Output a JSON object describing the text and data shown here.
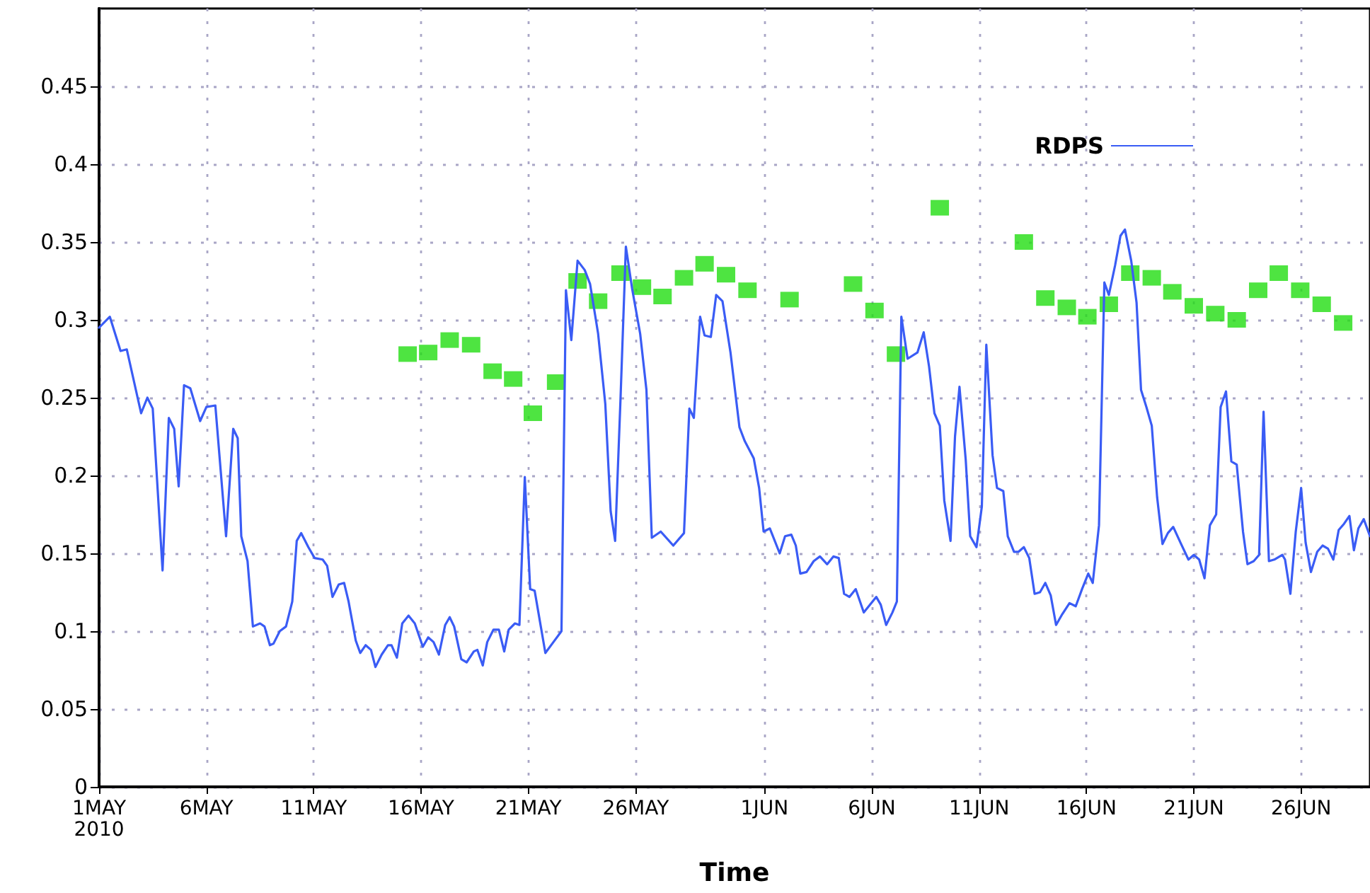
{
  "chart_data": {
    "type": "line",
    "xlabel": "Time",
    "xlim": [
      "2010-05-01T00:00",
      "2010-06-29T05:00"
    ],
    "xticks": [
      {
        "value": "2010-05-01",
        "label": "1MAY\n2010"
      },
      {
        "value": "2010-05-06",
        "label": "6MAY"
      },
      {
        "value": "2010-05-11",
        "label": "11MAY"
      },
      {
        "value": "2010-05-16",
        "label": "16MAY"
      },
      {
        "value": "2010-05-21",
        "label": "21MAY"
      },
      {
        "value": "2010-05-26",
        "label": "26MAY"
      },
      {
        "value": "2010-06-01",
        "label": "1JUN"
      },
      {
        "value": "2010-06-06",
        "label": "6JUN"
      },
      {
        "value": "2010-06-11",
        "label": "11JUN"
      },
      {
        "value": "2010-06-16",
        "label": "16JUN"
      },
      {
        "value": "2010-06-21",
        "label": "21JUN"
      },
      {
        "value": "2010-06-26",
        "label": "26JUN"
      }
    ],
    "ylim": [
      0,
      0.5
    ],
    "yticks": [
      0,
      0.05,
      0.1,
      0.15,
      0.2,
      0.25,
      0.3,
      0.35,
      0.4,
      0.45
    ],
    "grid": true,
    "legend": "top right",
    "line_style": "solid",
    "series": [
      {
        "name": "RDPS",
        "color": "#3a5cf5",
        "marker": "none",
        "x": [
          "2010-05-01T00:00",
          "2010-05-01T12:00",
          "2010-05-02T00:00",
          "2010-05-02T07:00",
          "2010-05-02T23:00",
          "2010-05-03T06:00",
          "2010-05-03T12:00",
          "2010-05-03T23:00",
          "2010-05-04T06:00",
          "2010-05-04T12:00",
          "2010-05-04T17:00",
          "2010-05-04T23:00",
          "2010-05-05T06:00",
          "2010-05-05T17:00",
          "2010-05-06T00:00",
          "2010-05-06T10:00",
          "2010-05-06T22:00",
          "2010-05-07T06:00",
          "2010-05-07T11:00",
          "2010-05-07T15:00",
          "2010-05-07T22:00",
          "2010-05-08T04:00",
          "2010-05-08T12:00",
          "2010-05-08T17:00",
          "2010-05-08T23:00",
          "2010-05-09T03:00",
          "2010-05-09T10:00",
          "2010-05-09T17:00",
          "2010-05-10T00:00",
          "2010-05-10T05:00",
          "2010-05-10T10:00",
          "2010-05-10T18:00",
          "2010-05-11T01:00",
          "2010-05-11T10:00",
          "2010-05-11T15:00",
          "2010-05-11T21:00",
          "2010-05-12T04:00",
          "2010-05-12T10:00",
          "2010-05-12T15:00",
          "2010-05-12T23:00",
          "2010-05-13T04:00",
          "2010-05-13T10:00",
          "2010-05-13T16:00",
          "2010-05-13T21:00",
          "2010-05-14T04:00",
          "2010-05-14T11:00",
          "2010-05-14T15:00",
          "2010-05-14T21:00",
          "2010-05-15T03:00",
          "2010-05-15T10:00",
          "2010-05-15T17:00",
          "2010-05-16T02:00",
          "2010-05-16T08:00",
          "2010-05-16T14:00",
          "2010-05-16T20:00",
          "2010-05-17T03:00",
          "2010-05-17T08:00",
          "2010-05-17T13:00",
          "2010-05-17T21:00",
          "2010-05-18T03:00",
          "2010-05-18T11:00",
          "2010-05-18T15:00",
          "2010-05-18T21:00",
          "2010-05-19T02:00",
          "2010-05-19T09:00",
          "2010-05-19T15:00",
          "2010-05-19T21:00",
          "2010-05-20T02:00",
          "2010-05-20T09:00",
          "2010-05-20T14:00",
          "2010-05-20T20:00",
          "2010-05-21T02:00",
          "2010-05-21T07:00",
          "2010-05-21T19:00",
          "2010-05-22T04:00",
          "2010-05-22T13:00",
          "2010-05-22T18:00",
          "2010-05-23T00:00",
          "2010-05-23T07:00",
          "2010-05-23T15:00",
          "2010-05-23T21:00",
          "2010-05-24T06:00",
          "2010-05-24T14:00",
          "2010-05-24T20:00",
          "2010-05-25T01:00",
          "2010-05-25T07:00",
          "2010-05-25T13:00",
          "2010-05-25T20:00",
          "2010-05-26T05:00",
          "2010-05-26T12:00",
          "2010-05-26T18:00",
          "2010-05-27T04:00",
          "2010-05-27T18:00",
          "2010-05-28T06:00",
          "2010-05-28T12:00",
          "2010-05-28T17:00",
          "2010-05-29T00:00",
          "2010-05-29T05:00",
          "2010-05-29T12:00",
          "2010-05-29T18:00",
          "2010-05-30T01:00",
          "2010-05-30T10:00",
          "2010-05-30T20:00",
          "2010-05-31T02:00",
          "2010-05-31T12:00",
          "2010-05-31T18:00",
          "2010-05-31T23:00",
          "2010-06-01T06:00",
          "2010-06-01T17:00",
          "2010-06-01T23:00",
          "2010-06-02T06:00",
          "2010-06-02T11:00",
          "2010-06-02T16:00",
          "2010-06-02T23:00",
          "2010-06-03T07:00",
          "2010-06-03T14:00",
          "2010-06-03T22:00",
          "2010-06-04T05:00",
          "2010-06-04T11:00",
          "2010-06-04T17:00",
          "2010-06-04T23:00",
          "2010-06-05T06:00",
          "2010-06-05T15:00",
          "2010-06-05T22:00",
          "2010-06-06T05:00",
          "2010-06-06T10:00",
          "2010-06-06T16:00",
          "2010-06-06T23:00",
          "2010-06-07T04:00",
          "2010-06-07T09:00",
          "2010-06-07T16:00",
          "2010-06-08T03:00",
          "2010-06-08T10:00",
          "2010-06-08T16:00",
          "2010-06-08T22:00",
          "2010-06-09T04:00",
          "2010-06-09T09:00",
          "2010-06-09T16:00",
          "2010-06-09T21:00",
          "2010-06-10T02:00",
          "2010-06-10T09:00",
          "2010-06-10T14:00",
          "2010-06-10T21:00",
          "2010-06-11T03:00",
          "2010-06-11T08:00",
          "2010-06-11T15:00",
          "2010-06-11T20:00",
          "2010-06-12T03:00",
          "2010-06-12T08:00",
          "2010-06-12T15:00",
          "2010-06-12T20:00",
          "2010-06-13T02:00",
          "2010-06-13T08:00",
          "2010-06-13T14:00",
          "2010-06-13T20:00",
          "2010-06-14T02:00",
          "2010-06-14T08:00",
          "2010-06-14T14:00",
          "2010-06-14T21:00",
          "2010-06-15T05:00",
          "2010-06-15T12:00",
          "2010-06-15T19:00",
          "2010-06-16T02:00",
          "2010-06-16T07:00",
          "2010-06-16T14:00",
          "2010-06-16T20:00",
          "2010-06-17T01:00",
          "2010-06-17T08:00",
          "2010-06-17T14:00",
          "2010-06-17T19:00",
          "2010-06-18T02:00",
          "2010-06-18T08:00",
          "2010-06-18T13:00",
          "2010-06-18T19:00",
          "2010-06-19T01:00",
          "2010-06-19T07:00",
          "2010-06-19T13:00",
          "2010-06-19T19:00",
          "2010-06-20T01:00",
          "2010-06-20T09:00",
          "2010-06-20T18:00",
          "2010-06-21T00:00",
          "2010-06-21T06:00",
          "2010-06-21T12:00",
          "2010-06-21T18:00",
          "2010-06-22T01:00",
          "2010-06-22T06:00",
          "2010-06-22T12:00",
          "2010-06-22T18:00",
          "2010-06-23T00:00",
          "2010-06-23T07:00",
          "2010-06-23T12:00",
          "2010-06-23T19:00",
          "2010-06-24T01:00",
          "2010-06-24T06:00",
          "2010-06-24T12:00",
          "2010-06-24T18:00",
          "2010-06-25T03:00",
          "2010-06-25T06:00",
          "2010-06-25T12:00",
          "2010-06-25T18:00",
          "2010-06-26T00:00",
          "2010-06-26T05:00",
          "2010-06-26T11:00",
          "2010-06-26T18:00",
          "2010-06-27T00:00",
          "2010-06-27T06:00",
          "2010-06-27T12:00",
          "2010-06-27T18:00",
          "2010-06-28T00:00",
          "2010-06-28T06:00",
          "2010-06-28T11:00",
          "2010-06-28T16:00",
          "2010-06-28T22:00",
          "2010-06-29T05:00"
        ],
        "values": [
          0.295,
          0.302,
          0.28,
          0.281,
          0.24,
          0.25,
          0.243,
          0.139,
          0.237,
          0.23,
          0.193,
          0.258,
          0.256,
          0.235,
          0.244,
          0.245,
          0.161,
          0.23,
          0.224,
          0.161,
          0.145,
          0.103,
          0.105,
          0.103,
          0.091,
          0.092,
          0.1,
          0.103,
          0.119,
          0.158,
          0.163,
          0.154,
          0.147,
          0.146,
          0.142,
          0.122,
          0.13,
          0.131,
          0.119,
          0.094,
          0.086,
          0.091,
          0.088,
          0.077,
          0.085,
          0.091,
          0.091,
          0.083,
          0.105,
          0.11,
          0.105,
          0.09,
          0.096,
          0.093,
          0.085,
          0.104,
          0.109,
          0.103,
          0.082,
          0.08,
          0.087,
          0.088,
          0.078,
          0.093,
          0.101,
          0.101,
          0.087,
          0.101,
          0.105,
          0.104,
          0.199,
          0.127,
          0.126,
          0.086,
          0.093,
          0.1,
          0.319,
          0.287,
          0.338,
          0.332,
          0.323,
          0.291,
          0.246,
          0.177,
          0.158,
          0.249,
          0.347,
          0.32,
          0.291,
          0.255,
          0.16,
          0.164,
          0.155,
          0.163,
          0.243,
          0.237,
          0.302,
          0.29,
          0.289,
          0.316,
          0.312,
          0.279,
          0.231,
          0.222,
          0.211,
          0.192,
          0.164,
          0.166,
          0.15,
          0.161,
          0.162,
          0.155,
          0.137,
          0.138,
          0.145,
          0.148,
          0.143,
          0.148,
          0.147,
          0.124,
          0.122,
          0.127,
          0.112,
          0.117,
          0.122,
          0.117,
          0.104,
          0.112,
          0.119,
          0.302,
          0.275,
          0.279,
          0.292,
          0.27,
          0.24,
          0.232,
          0.184,
          0.158,
          0.225,
          0.257,
          0.21,
          0.161,
          0.154,
          0.18,
          0.284,
          0.213,
          0.192,
          0.19,
          0.161,
          0.151,
          0.151,
          0.154,
          0.147,
          0.124,
          0.125,
          0.131,
          0.123,
          0.104,
          0.111,
          0.118,
          0.116,
          0.127,
          0.137,
          0.131,
          0.168,
          0.324,
          0.316,
          0.335,
          0.354,
          0.358,
          0.338,
          0.311,
          0.255,
          0.244,
          0.232,
          0.186,
          0.156,
          0.163,
          0.167,
          0.157,
          0.146,
          0.149,
          0.146,
          0.134,
          0.168,
          0.175,
          0.244,
          0.254,
          0.209,
          0.207,
          0.164,
          0.143,
          0.145,
          0.149,
          0.241,
          0.145,
          0.146,
          0.149,
          0.146,
          0.124,
          0.164,
          0.192,
          0.157,
          0.138,
          0.151,
          0.155,
          0.153,
          0.146,
          0.165,
          0.169,
          0.174,
          0.152,
          0.166,
          0.172,
          0.161
        ]
      },
      {
        "type": "scatter",
        "color": "#22dd11",
        "marker": "square",
        "x": [
          "2010-05-15T09:00",
          "2010-05-16T08:00",
          "2010-05-17T08:00",
          "2010-05-18T08:00",
          "2010-05-19T08:00",
          "2010-05-20T07:00",
          "2010-05-21T05:00",
          "2010-05-22T07:00",
          "2010-05-23T07:00",
          "2010-05-24T06:00",
          "2010-05-25T07:00",
          "2010-05-26T07:00",
          "2010-05-27T06:00",
          "2010-05-28T06:00",
          "2010-05-29T05:00",
          "2010-05-30T05:00",
          "2010-05-31T05:00",
          "2010-06-02T04:00",
          "2010-06-05T03:00",
          "2010-06-06T03:00",
          "2010-06-07T03:00",
          "2010-06-09T04:00",
          "2010-06-13T02:00",
          "2010-06-14T02:00",
          "2010-06-15T02:00",
          "2010-06-16T01:00",
          "2010-06-17T01:00",
          "2010-06-18T01:00",
          "2010-06-19T01:00",
          "2010-06-20T00:00",
          "2010-06-21T00:00",
          "2010-06-22T00:00",
          "2010-06-23T00:00",
          "2010-06-24T00:00",
          "2010-06-24T23:00",
          "2010-06-25T23:00",
          "2010-06-26T23:00",
          "2010-06-27T23:00"
        ],
        "values": [
          0.278,
          0.279,
          0.287,
          0.284,
          0.267,
          0.262,
          0.24,
          0.26,
          0.325,
          0.312,
          0.33,
          0.321,
          0.315,
          0.327,
          0.336,
          0.329,
          0.319,
          0.313,
          0.323,
          0.306,
          0.278,
          0.372,
          0.35,
          0.314,
          0.308,
          0.302,
          0.31,
          0.33,
          0.327,
          0.318,
          0.309,
          0.304,
          0.3,
          0.319,
          0.33,
          0.319,
          0.31,
          0.298
        ]
      }
    ]
  }
}
